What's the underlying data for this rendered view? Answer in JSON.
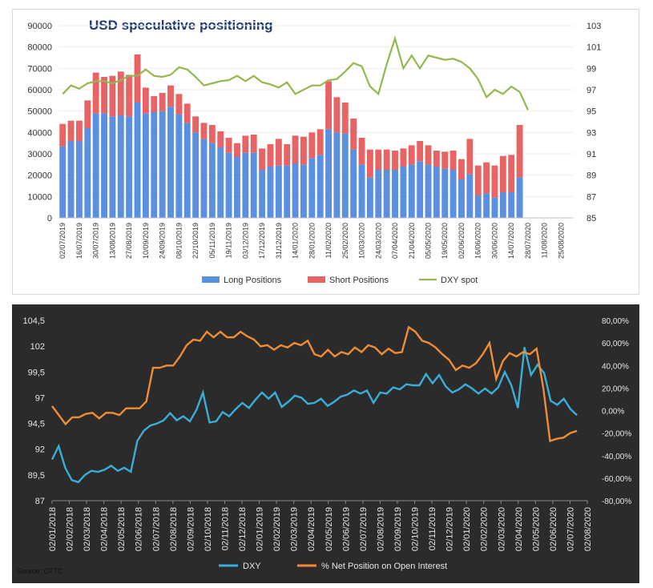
{
  "chart_data": [
    {
      "type": "bar",
      "title": "USD speculative positioning",
      "x_tick_labels": [
        "02/07/2019",
        "16/07/2019",
        "30/07/2019",
        "13/08/2019",
        "27/08/2019",
        "10/09/2019",
        "24/09/2019",
        "08/10/2019",
        "22/10/2019",
        "05/11/2019",
        "19/11/2019",
        "03/12/2019",
        "17/12/2019",
        "31/12/2019",
        "14/01/2020",
        "28/01/2020",
        "11/02/2020",
        "25/02/2020",
        "10/03/2020",
        "24/03/2020",
        "07/04/2020",
        "21/04/2020",
        "05/05/2020",
        "19/05/2020",
        "02/06/2020",
        "16/06/2020",
        "30/06/2020",
        "14/07/2020",
        "28/07/2020",
        "11/08/2020",
        "25/08/2020"
      ],
      "left_axis": {
        "ylim": [
          0,
          90000
        ],
        "ticks": [
          "0",
          "10000",
          "20000",
          "30000",
          "40000",
          "50000",
          "60000",
          "70000",
          "80000",
          "90000"
        ]
      },
      "right_axis": {
        "ylim": [
          85,
          103
        ],
        "ticks": [
          "85",
          "87",
          "89",
          "91",
          "93",
          "95",
          "97",
          "99",
          "101",
          "103"
        ]
      },
      "series": [
        {
          "name": "Long Positions",
          "color": "#5b8fe0",
          "kind": "bar_stack",
          "values": [
            33500,
            36000,
            36000,
            42000,
            49000,
            49000,
            47500,
            48000,
            47500,
            54000,
            49000,
            49500,
            50000,
            52000,
            48500,
            44500,
            40000,
            37000,
            35000,
            33000,
            30500,
            28500,
            30500,
            30500,
            22500,
            24000,
            24500,
            24500,
            25500,
            25000,
            28000,
            29500,
            41500,
            40000,
            39500,
            32000,
            25000,
            19000,
            22500,
            22500,
            22500,
            24000,
            25000,
            26500,
            25000,
            24000,
            23000,
            22500,
            18000,
            20500,
            10500,
            11500,
            9500,
            12000,
            12000,
            19000,
            0,
            0,
            0,
            0,
            0,
            0
          ]
        },
        {
          "name": "Short Positions",
          "color": "#e86464",
          "kind": "bar_stack",
          "values": [
            10500,
            9500,
            9500,
            13000,
            19000,
            17000,
            19000,
            20500,
            19500,
            22500,
            12000,
            7500,
            8500,
            10000,
            9500,
            9000,
            7500,
            7500,
            8500,
            7500,
            7000,
            6500,
            8000,
            8500,
            10000,
            10500,
            12500,
            10000,
            13000,
            13000,
            12000,
            12000,
            22500,
            16500,
            14500,
            14500,
            12500,
            13000,
            9500,
            9500,
            9000,
            8500,
            9000,
            9500,
            9000,
            7500,
            8000,
            9000,
            9500,
            16500,
            14000,
            14500,
            15000,
            17000,
            17500,
            24500,
            0,
            0,
            0,
            0,
            0,
            0
          ]
        },
        {
          "name": "DXY spot",
          "color": "#92b84e",
          "kind": "line",
          "axis": "right",
          "values": [
            96.6,
            97.4,
            97.1,
            97.6,
            97.8,
            97.8,
            97.6,
            97.9,
            98.3,
            98.3,
            98.9,
            98.3,
            98.2,
            98.4,
            99.1,
            98.9,
            98.2,
            97.4,
            97.6,
            97.8,
            97.9,
            98.3,
            97.8,
            98.3,
            97.7,
            97.5,
            97.2,
            97.7,
            96.6,
            97.0,
            97.4,
            97.4,
            97.9,
            98.0,
            98.7,
            99.5,
            99.2,
            97.3,
            96.6,
            99.4,
            101.8,
            99.0,
            100.2,
            99.0,
            100.2,
            100.0,
            99.8,
            99.9,
            99.6,
            99.0,
            98.0,
            96.3,
            97.0,
            96.6,
            97.3,
            96.8,
            95.1
          ],
          "n": 57
        },
        {
          "name": "DXY spot",
          "color": "#92b84e",
          "kind": "line",
          "axis": "right",
          "values": []
        }
      ],
      "legend": [
        "Long Positions",
        "Short Positions",
        "DXY spot"
      ],
      "legend_position": "bottom"
    },
    {
      "type": "line",
      "title": "",
      "x_tick_labels": [
        "02/01/2018",
        "02/02/2018",
        "02/03/2018",
        "02/04/2018",
        "02/05/2018",
        "02/06/2018",
        "02/07/2018",
        "02/08/2018",
        "02/09/2018",
        "02/10/2018",
        "02/11/2018",
        "02/12/2018",
        "02/01/2019",
        "02/02/2019",
        "02/03/2019",
        "02/04/2019",
        "02/05/2019",
        "02/06/2019",
        "02/07/2019",
        "02/08/2019",
        "02/09/2019",
        "02/10/2019",
        "02/11/2019",
        "02/12/2019",
        "02/01/2020",
        "02/02/2020",
        "02/03/2020",
        "02/04/2020",
        "02/05/2020",
        "02/06/2020",
        "02/07/2020",
        "02/08/2020"
      ],
      "left_axis": {
        "ylim": [
          87,
          104.5
        ],
        "ticks": [
          "87",
          "89,5",
          "92",
          "94,5",
          "97",
          "99,5",
          "102",
          "104,5"
        ]
      },
      "right_axis": {
        "ylim": [
          -80,
          80
        ],
        "ticks": [
          "-80,00%",
          "-60,00%",
          "-40,00%",
          "-20,00%",
          "0,00%",
          "20,00%",
          "40,00%",
          "60,00%",
          "80,00%"
        ]
      },
      "series": [
        {
          "name": "DXY",
          "color": "#3aaed8",
          "values": [
            91.0,
            92.3,
            90.2,
            89.0,
            88.8,
            89.5,
            89.9,
            89.8,
            90.0,
            90.4,
            89.9,
            90.2,
            89.8,
            92.8,
            93.8,
            94.3,
            94.5,
            94.8,
            95.5,
            94.8,
            95.2,
            94.7,
            95.8,
            97.5,
            94.6,
            94.7,
            95.6,
            95.2,
            95.9,
            96.5,
            96.0,
            96.8,
            97.5,
            96.9,
            97.5,
            96.1,
            96.6,
            97.2,
            97.0,
            96.4,
            96.5,
            96.9,
            96.2,
            96.6,
            97.1,
            97.3,
            97.7,
            97.4,
            97.7,
            96.5,
            97.5,
            97.4,
            98.0,
            97.8,
            98.3,
            98.2,
            98.2,
            99.3,
            98.4,
            99.2,
            98.1,
            97.5,
            97.8,
            98.3,
            97.9,
            97.4,
            97.9,
            97.4,
            98.0,
            99.5,
            98.2,
            96.0,
            101.9,
            99.2,
            100.2,
            99.4,
            96.7,
            96.3,
            96.9,
            95.9,
            95.3
          ],
          "n": 81
        },
        {
          "name": "% Net Position on Open Interest",
          "color": "#f08c35",
          "values": [
            4,
            -4,
            -12,
            -6,
            -6,
            -3,
            -2,
            -7,
            -2,
            -2,
            -4,
            2,
            2,
            2,
            8,
            38,
            38,
            40,
            40,
            48,
            58,
            63,
            62,
            70,
            65,
            70,
            65,
            65,
            70,
            66,
            63,
            57,
            58,
            54,
            58,
            56,
            60,
            58,
            62,
            50,
            48,
            54,
            48,
            52,
            50,
            56,
            52,
            58,
            56,
            50,
            55,
            51,
            52,
            74,
            70,
            62,
            60,
            56,
            50,
            45,
            36,
            40,
            38,
            42,
            50,
            60,
            28,
            44,
            51,
            48,
            52,
            50,
            55,
            20,
            -27,
            -25,
            -24,
            -20,
            -18
          ],
          "n": 79
        }
      ],
      "legend": [
        "DXY",
        "% Net Position on Open Interest"
      ],
      "legend_position": "bottom",
      "source": "Source: CFTC"
    }
  ]
}
